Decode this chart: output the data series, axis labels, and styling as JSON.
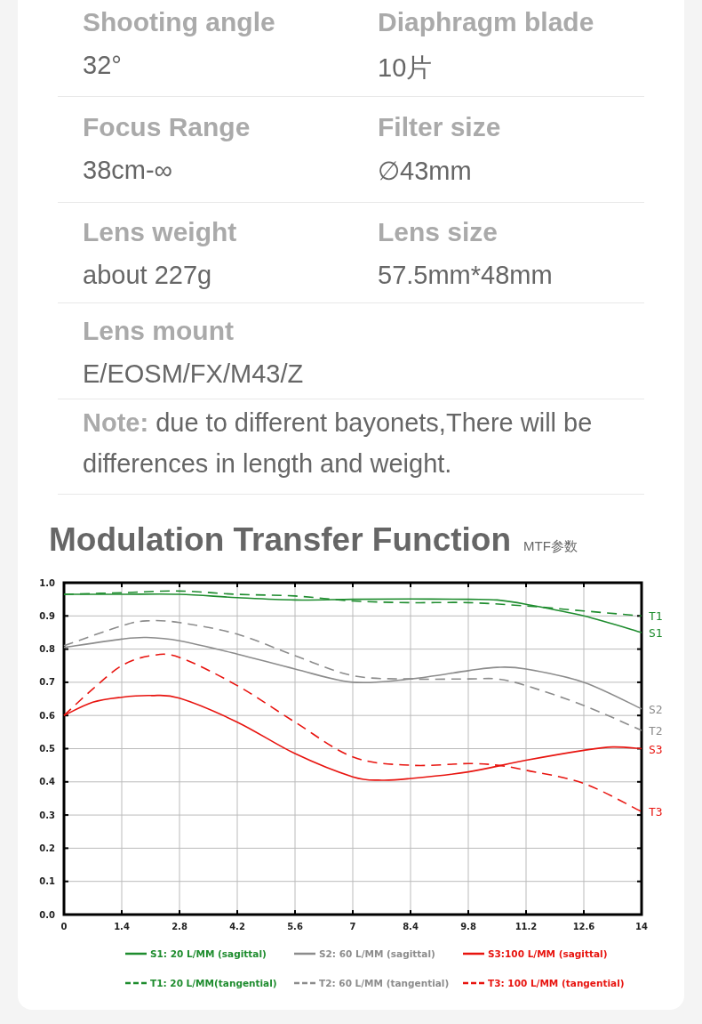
{
  "chart_data": [
    {
      "type": "other",
      "annotations": [
        "Shooting angle",
        "32°",
        "Diaphragm blade",
        "10片",
        "Focus Range",
        "38cm-∞",
        "Filter size",
        "∅43mm",
        "Lens weight",
        "about 227g",
        "Lens size",
        "57.5mm*48mm",
        "Lens mount",
        "E/EOSM/FX/M43/Z",
        "Note:",
        "due to different bayonets,There will be differences in length and weight."
      ]
    },
    {
      "type": "line",
      "title": "Modulation Transfer Function",
      "subtitle": "MTF参数",
      "xlim": [
        0,
        14
      ],
      "ylim": [
        0,
        1
      ],
      "xticks": [
        0,
        1.4,
        2.8,
        4.2,
        5.6,
        7,
        8.4,
        9.8,
        11.2,
        12.6,
        14
      ],
      "yticks": [
        {
          "value": 0,
          "label": "0.0"
        },
        0.1,
        0.2,
        0.3,
        0.4,
        0.5,
        0.6,
        0.7,
        0.8,
        0.9,
        {
          "value": 1,
          "label": "1.0"
        }
      ],
      "grid": true,
      "legend": "bottom",
      "series": [
        {
          "name": "S1: 20 L/MM (sagittal)",
          "color": "#1e8c2e",
          "line_style": "solid",
          "x": [
            0,
            1.4,
            2.8,
            4.2,
            5.6,
            7,
            8.4,
            9.8,
            10.5,
            11.2,
            12.6,
            14
          ],
          "values": [
            0.965,
            0.965,
            0.965,
            0.955,
            0.948,
            0.95,
            0.951,
            0.95,
            0.948,
            0.935,
            0.9,
            0.85
          ]
        },
        {
          "name": "T1: 20 L/MM(tangential)",
          "color": "#1e8c2e",
          "line_style": "dashed",
          "x": [
            0,
            1.4,
            2.8,
            4.2,
            5.6,
            7,
            8.4,
            9.8,
            11.2,
            12.6,
            14
          ],
          "values": [
            0.965,
            0.97,
            0.975,
            0.965,
            0.96,
            0.945,
            0.94,
            0.94,
            0.93,
            0.915,
            0.9
          ]
        },
        {
          "name": "S2: 60 L/MM (sagittal)",
          "color": "#8c8c8c",
          "line_style": "solid",
          "x": [
            0,
            1.4,
            2,
            2.8,
            4.2,
            5.6,
            7,
            8.4,
            9.8,
            10.5,
            11.2,
            12.6,
            14
          ],
          "values": [
            0.805,
            0.83,
            0.835,
            0.825,
            0.785,
            0.74,
            0.7,
            0.71,
            0.735,
            0.745,
            0.74,
            0.7,
            0.62
          ]
        },
        {
          "name": "T2: 60 L/MM (tangential)",
          "color": "#8c8c8c",
          "line_style": "dashed",
          "x": [
            0,
            1.4,
            2,
            2.8,
            4.2,
            5.6,
            7,
            8.4,
            9.8,
            10.5,
            11.2,
            12.6,
            14
          ],
          "values": [
            0.81,
            0.87,
            0.885,
            0.88,
            0.845,
            0.78,
            0.72,
            0.71,
            0.71,
            0.71,
            0.69,
            0.63,
            0.555
          ]
        },
        {
          "name": "S3:100 L/MM (sagittal)",
          "color": "#e8140f",
          "line_style": "solid",
          "x": [
            0,
            0.7,
            1.4,
            2.1,
            2.8,
            4.2,
            5.6,
            7,
            7.7,
            8.4,
            9.8,
            11.2,
            12.6,
            13.3,
            14
          ],
          "values": [
            0.6,
            0.64,
            0.655,
            0.66,
            0.652,
            0.58,
            0.485,
            0.415,
            0.405,
            0.41,
            0.43,
            0.465,
            0.495,
            0.505,
            0.5
          ]
        },
        {
          "name": "T3: 100 L/MM (tangential)",
          "color": "#e8140f",
          "line_style": "dashed",
          "x": [
            0,
            0.7,
            1.4,
            2.1,
            2.8,
            4.2,
            5.6,
            7,
            8.4,
            9.8,
            10.5,
            11.2,
            12.6,
            14
          ],
          "values": [
            0.6,
            0.68,
            0.75,
            0.78,
            0.775,
            0.69,
            0.58,
            0.475,
            0.45,
            0.455,
            0.45,
            0.435,
            0.395,
            0.31
          ]
        }
      ],
      "annotations": [
        "S1",
        "T1",
        "S2",
        "T2",
        "S3",
        "T3"
      ]
    }
  ]
}
